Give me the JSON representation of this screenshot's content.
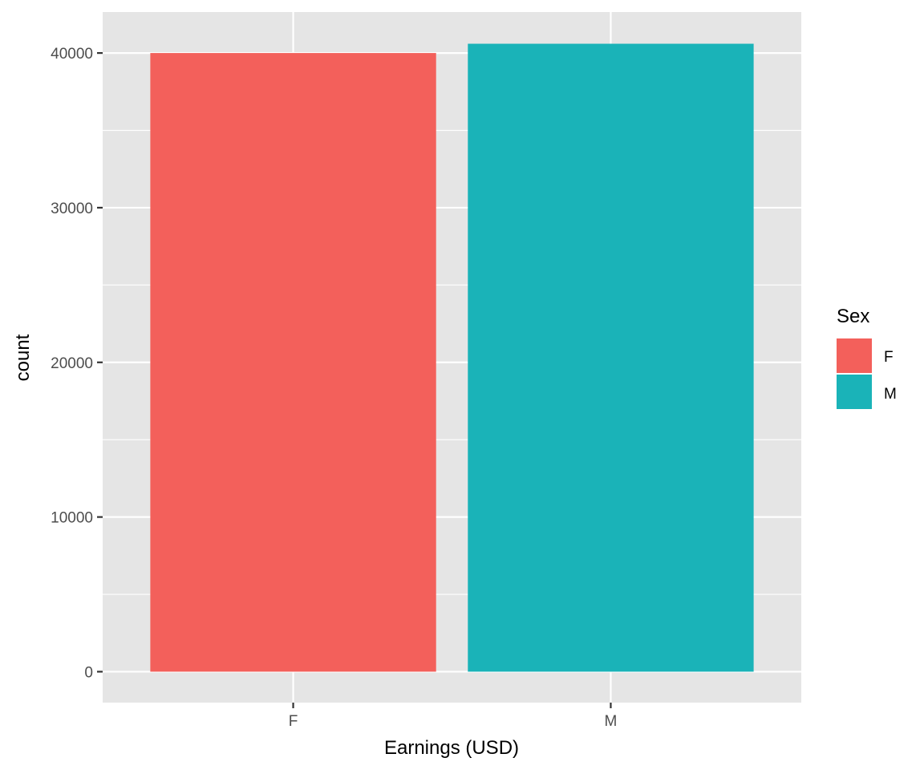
{
  "chart_data": {
    "type": "bar",
    "title": "",
    "xlabel": "Earnings (USD)",
    "ylabel": "count",
    "categories": [
      "F",
      "M"
    ],
    "values": [
      40000,
      40600
    ],
    "colors": [
      "#F8766D",
      "#00BFC4"
    ],
    "fill_colors_rendered": [
      "#F3605B",
      "#1AB3B8"
    ],
    "ylim": [
      -2000,
      42650
    ],
    "yticks": [
      0,
      10000,
      20000,
      30000,
      40000
    ],
    "ytick_labels": [
      "0",
      "10000",
      "20000",
      "30000",
      "40000"
    ],
    "grid": true,
    "panel_background": "#E5E5E5",
    "legend": {
      "title": "Sex",
      "placement": "right",
      "items": [
        {
          "label": "F",
          "color": "#F3605B"
        },
        {
          "label": "M",
          "color": "#1AB3B8"
        }
      ]
    }
  }
}
